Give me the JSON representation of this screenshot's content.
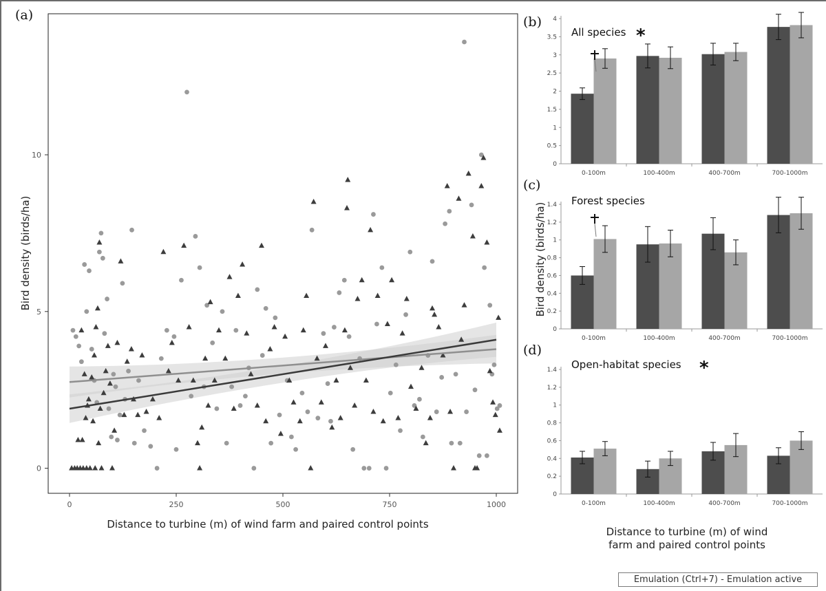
{
  "status_bar": "Emulation (Ctrl+7) - Emulation active",
  "colors": {
    "wind_farm": "#4d4d4d",
    "control": "#a6a6a6",
    "band": "#cfcfcf"
  },
  "chart_data": [
    {
      "panel": "(a)",
      "type": "scatter",
      "xlabel": "Distance to turbine (m) of wind farm and paired control points",
      "ylabel": "Bird density (birds/ha)",
      "xlim": [
        -50,
        1050
      ],
      "ylim": [
        -0.8,
        14.5
      ],
      "xticks": [
        "0",
        "250",
        "500",
        "750",
        "1000"
      ],
      "yticks": [
        "0",
        "5",
        "10"
      ],
      "series": [
        {
          "marker": "triangle",
          "color": "#3d3d3d",
          "fit": {
            "x": [
              0,
              1000
            ],
            "y": [
              1.9,
              4.1
            ]
          },
          "points": [
            [
              5,
              0
            ],
            [
              12,
              0
            ],
            [
              18,
              0
            ],
            [
              25,
              0
            ],
            [
              32,
              0
            ],
            [
              40,
              0
            ],
            [
              48,
              0
            ],
            [
              60,
              0
            ],
            [
              75,
              0
            ],
            [
              100,
              0
            ],
            [
              20,
              0.9
            ],
            [
              30,
              0.9
            ],
            [
              38,
              1.6
            ],
            [
              45,
              2.2
            ],
            [
              52,
              2.9
            ],
            [
              58,
              3.6
            ],
            [
              62,
              4.5
            ],
            [
              66,
              5.1
            ],
            [
              70,
              7.2
            ],
            [
              28,
              4.4
            ],
            [
              35,
              3.0
            ],
            [
              42,
              2.0
            ],
            [
              55,
              1.5
            ],
            [
              68,
              0.8
            ],
            [
              72,
              1.9
            ],
            [
              80,
              2.4
            ],
            [
              85,
              3.1
            ],
            [
              90,
              3.9
            ],
            [
              95,
              2.7
            ],
            [
              105,
              1.2
            ],
            [
              112,
              4.0
            ],
            [
              120,
              6.6
            ],
            [
              128,
              1.7
            ],
            [
              135,
              3.4
            ],
            [
              145,
              3.8
            ],
            [
              150,
              2.2
            ],
            [
              160,
              1.7
            ],
            [
              170,
              3.6
            ],
            [
              180,
              1.8
            ],
            [
              195,
              2.2
            ],
            [
              210,
              1.6
            ],
            [
              220,
              6.9
            ],
            [
              232,
              3.1
            ],
            [
              240,
              4.0
            ],
            [
              255,
              2.8
            ],
            [
              268,
              7.1
            ],
            [
              280,
              4.5
            ],
            [
              290,
              2.8
            ],
            [
              300,
              0.8
            ],
            [
              305,
              0
            ],
            [
              310,
              1.3
            ],
            [
              318,
              3.5
            ],
            [
              325,
              2.0
            ],
            [
              330,
              5.3
            ],
            [
              340,
              2.8
            ],
            [
              350,
              4.4
            ],
            [
              365,
              3.5
            ],
            [
              375,
              6.1
            ],
            [
              385,
              1.9
            ],
            [
              395,
              5.5
            ],
            [
              405,
              6.5
            ],
            [
              415,
              4.3
            ],
            [
              425,
              3.0
            ],
            [
              440,
              2.0
            ],
            [
              450,
              7.1
            ],
            [
              460,
              1.5
            ],
            [
              470,
              3.8
            ],
            [
              480,
              4.5
            ],
            [
              495,
              1.1
            ],
            [
              505,
              4.2
            ],
            [
              515,
              2.8
            ],
            [
              525,
              2.1
            ],
            [
              540,
              1.5
            ],
            [
              548,
              4.4
            ],
            [
              555,
              5.5
            ],
            [
              565,
              0
            ],
            [
              572,
              8.5
            ],
            [
              580,
              3.5
            ],
            [
              590,
              2.1
            ],
            [
              600,
              3.9
            ],
            [
              615,
              1.3
            ],
            [
              625,
              2.8
            ],
            [
              635,
              1.6
            ],
            [
              645,
              4.4
            ],
            [
              650,
              8.3
            ],
            [
              652,
              9.2
            ],
            [
              658,
              3.2
            ],
            [
              668,
              2.0
            ],
            [
              675,
              5.4
            ],
            [
              685,
              6.0
            ],
            [
              695,
              2.8
            ],
            [
              705,
              7.6
            ],
            [
              712,
              1.8
            ],
            [
              722,
              5.5
            ],
            [
              735,
              1.5
            ],
            [
              745,
              4.6
            ],
            [
              755,
              6.0
            ],
            [
              770,
              1.6
            ],
            [
              780,
              4.3
            ],
            [
              790,
              5.4
            ],
            [
              800,
              2.6
            ],
            [
              812,
              1.9
            ],
            [
              825,
              3.2
            ],
            [
              835,
              0.8
            ],
            [
              845,
              1.6
            ],
            [
              850,
              5.1
            ],
            [
              855,
              4.9
            ],
            [
              865,
              4.5
            ],
            [
              875,
              3.6
            ],
            [
              885,
              9.0
            ],
            [
              892,
              1.8
            ],
            [
              900,
              0
            ],
            [
              912,
              8.6
            ],
            [
              918,
              4.1
            ],
            [
              925,
              5.2
            ],
            [
              935,
              9.4
            ],
            [
              945,
              7.4
            ],
            [
              950,
              0
            ],
            [
              955,
              0
            ],
            [
              965,
              9.0
            ],
            [
              970,
              9.9
            ],
            [
              978,
              7.2
            ],
            [
              985,
              3.1
            ],
            [
              992,
              2.1
            ],
            [
              998,
              1.7
            ],
            [
              1005,
              4.8
            ],
            [
              1008,
              1.2
            ]
          ]
        },
        {
          "marker": "circle",
          "color": "#9a9a9a",
          "fit": {
            "x": [
              0,
              1000
            ],
            "y": [
              2.75,
              3.8
            ]
          },
          "points": [
            [
              8,
              4.4
            ],
            [
              15,
              4.2
            ],
            [
              22,
              3.9
            ],
            [
              28,
              3.4
            ],
            [
              35,
              6.5
            ],
            [
              40,
              5.0
            ],
            [
              46,
              6.3
            ],
            [
              52,
              3.8
            ],
            [
              58,
              2.8
            ],
            [
              64,
              2.1
            ],
            [
              70,
              6.9
            ],
            [
              74,
              7.5
            ],
            [
              78,
              6.7
            ],
            [
              82,
              4.3
            ],
            [
              88,
              5.4
            ],
            [
              92,
              1.9
            ],
            [
              98,
              1.0
            ],
            [
              103,
              3.0
            ],
            [
              108,
              2.6
            ],
            [
              112,
              0.9
            ],
            [
              118,
              1.7
            ],
            [
              124,
              5.9
            ],
            [
              130,
              2.2
            ],
            [
              138,
              3.1
            ],
            [
              146,
              7.6
            ],
            [
              152,
              0.8
            ],
            [
              162,
              2.8
            ],
            [
              175,
              1.2
            ],
            [
              190,
              0.7
            ],
            [
              205,
              0
            ],
            [
              215,
              3.5
            ],
            [
              228,
              4.4
            ],
            [
              245,
              4.2
            ],
            [
              250,
              0.6
            ],
            [
              262,
              6.0
            ],
            [
              275,
              12.0
            ],
            [
              285,
              2.3
            ],
            [
              295,
              7.4
            ],
            [
              305,
              6.4
            ],
            [
              315,
              2.6
            ],
            [
              322,
              5.2
            ],
            [
              335,
              4.0
            ],
            [
              345,
              1.9
            ],
            [
              358,
              5.0
            ],
            [
              368,
              0.8
            ],
            [
              380,
              2.6
            ],
            [
              390,
              4.4
            ],
            [
              400,
              2.0
            ],
            [
              412,
              2.3
            ],
            [
              420,
              3.2
            ],
            [
              432,
              0
            ],
            [
              440,
              5.7
            ],
            [
              452,
              3.6
            ],
            [
              460,
              5.1
            ],
            [
              472,
              0.8
            ],
            [
              482,
              4.8
            ],
            [
              492,
              1.7
            ],
            [
              510,
              2.8
            ],
            [
              520,
              1.0
            ],
            [
              530,
              0.6
            ],
            [
              545,
              2.4
            ],
            [
              558,
              1.8
            ],
            [
              568,
              7.6
            ],
            [
              582,
              1.6
            ],
            [
              595,
              4.3
            ],
            [
              605,
              2.7
            ],
            [
              612,
              1.5
            ],
            [
              620,
              4.5
            ],
            [
              632,
              5.6
            ],
            [
              644,
              6.0
            ],
            [
              655,
              4.2
            ],
            [
              664,
              0.6
            ],
            [
              680,
              3.5
            ],
            [
              690,
              0
            ],
            [
              702,
              0
            ],
            [
              712,
              8.1
            ],
            [
              720,
              4.6
            ],
            [
              732,
              6.4
            ],
            [
              742,
              0
            ],
            [
              752,
              2.4
            ],
            [
              765,
              3.3
            ],
            [
              775,
              1.2
            ],
            [
              788,
              4.9
            ],
            [
              798,
              6.9
            ],
            [
              808,
              2.0
            ],
            [
              820,
              2.2
            ],
            [
              828,
              1.0
            ],
            [
              840,
              3.6
            ],
            [
              850,
              6.6
            ],
            [
              860,
              1.8
            ],
            [
              872,
              2.9
            ],
            [
              880,
              7.8
            ],
            [
              890,
              8.2
            ],
            [
              895,
              0.8
            ],
            [
              905,
              3.0
            ],
            [
              915,
              0.8
            ],
            [
              925,
              13.6
            ],
            [
              930,
              1.8
            ],
            [
              942,
              8.4
            ],
            [
              950,
              2.5
            ],
            [
              960,
              0.4
            ],
            [
              965,
              10.0
            ],
            [
              972,
              6.4
            ],
            [
              978,
              0.4
            ],
            [
              985,
              5.2
            ],
            [
              990,
              3.0
            ],
            [
              995,
              3.3
            ],
            [
              1002,
              1.9
            ],
            [
              1008,
              2.0
            ]
          ]
        }
      ]
    },
    {
      "panel": "(b)",
      "type": "bar",
      "title": "All species",
      "categories": [
        "0-100m",
        "100-400m",
        "400-700m",
        "700-1000m"
      ],
      "ylim": [
        0,
        4
      ],
      "yticks": [
        "0",
        "0.5",
        "1",
        "1.5",
        "2",
        "2.5",
        "3",
        "3.5",
        "4"
      ],
      "series": [
        {
          "values": [
            1.93,
            2.97,
            3.02,
            3.77
          ],
          "errors": [
            0.16,
            0.33,
            0.3,
            0.35
          ]
        },
        {
          "values": [
            2.9,
            2.92,
            3.08,
            3.82
          ],
          "errors": [
            0.27,
            0.3,
            0.24,
            0.35
          ]
        }
      ]
    },
    {
      "panel": "(c)",
      "type": "bar",
      "title": "Forest species",
      "ylabel": "Bird density (birds/ha)",
      "categories": [
        "0-100m",
        "100-400m",
        "400-700m",
        "700-1000m"
      ],
      "ylim": [
        0,
        1.4
      ],
      "yticks": [
        "0",
        "0.2",
        "0.4",
        "0.6",
        "0.8",
        "1",
        "1.2",
        "1.4"
      ],
      "series": [
        {
          "values": [
            0.6,
            0.95,
            1.07,
            1.28
          ],
          "errors": [
            0.1,
            0.2,
            0.18,
            0.2
          ]
        },
        {
          "values": [
            1.01,
            0.96,
            0.86,
            1.3
          ],
          "errors": [
            0.15,
            0.15,
            0.14,
            0.18
          ]
        }
      ]
    },
    {
      "panel": "(d)",
      "type": "bar",
      "title": "Open-habitat species",
      "xlabel": "Distance to turbine (m) of wind farm and paired control points",
      "categories": [
        "0-100m",
        "100-400m",
        "400-700m",
        "700-1000m"
      ],
      "ylim": [
        0,
        1.4
      ],
      "yticks": [
        "0",
        "0.2",
        "0.4",
        "0.6",
        "0.8",
        "1",
        "1.2",
        "1.4"
      ],
      "series": [
        {
          "values": [
            0.41,
            0.28,
            0.48,
            0.43
          ],
          "errors": [
            0.07,
            0.09,
            0.1,
            0.09
          ]
        },
        {
          "values": [
            0.51,
            0.4,
            0.55,
            0.6
          ],
          "errors": [
            0.08,
            0.08,
            0.13,
            0.1
          ]
        }
      ]
    }
  ]
}
